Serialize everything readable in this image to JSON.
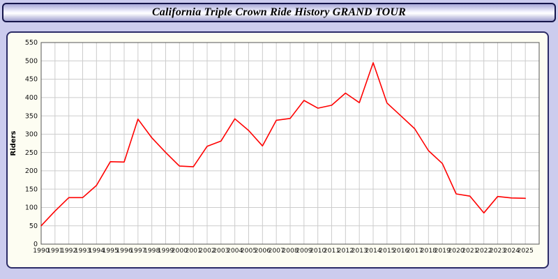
{
  "header": {
    "title": "California Triple Crown Ride History GRAND TOUR"
  },
  "colors": {
    "page_background": "#ccccee",
    "header_border": "#15154a",
    "panel_background": "#fdfdf2",
    "panel_border": "#2b2b66",
    "gridline": "#cccccc",
    "line": "#ff0000"
  },
  "chart_data": {
    "type": "line",
    "title": "California Triple Crown Ride History GRAND TOUR",
    "xlabel": "",
    "ylabel": "Riders",
    "ylim": [
      0,
      550
    ],
    "ytick_step": 50,
    "grid": true,
    "legend_position": "none",
    "line_color": "#ff0000",
    "categories": [
      "1990",
      "1991",
      "1992",
      "1993",
      "1994",
      "1995",
      "1996",
      "1997",
      "1998",
      "1999",
      "2000",
      "2001",
      "2002",
      "2003",
      "2004",
      "2005",
      "2006",
      "2007",
      "2008",
      "2009",
      "2010",
      "2011",
      "2012",
      "2013",
      "2014",
      "2015",
      "2016",
      "2017",
      "2018",
      "2019",
      "2020",
      "2021",
      "2022",
      "2023",
      "2024",
      "2025"
    ],
    "series": [
      {
        "name": "Riders",
        "values": [
          50,
          90,
          127,
          127,
          160,
          225,
          224,
          341,
          290,
          250,
          213,
          211,
          267,
          281,
          342,
          310,
          268,
          338,
          343,
          392,
          371,
          379,
          412,
          386,
          495,
          385,
          350,
          315,
          255,
          220,
          137,
          131,
          85,
          130,
          126,
          125
        ]
      }
    ]
  }
}
